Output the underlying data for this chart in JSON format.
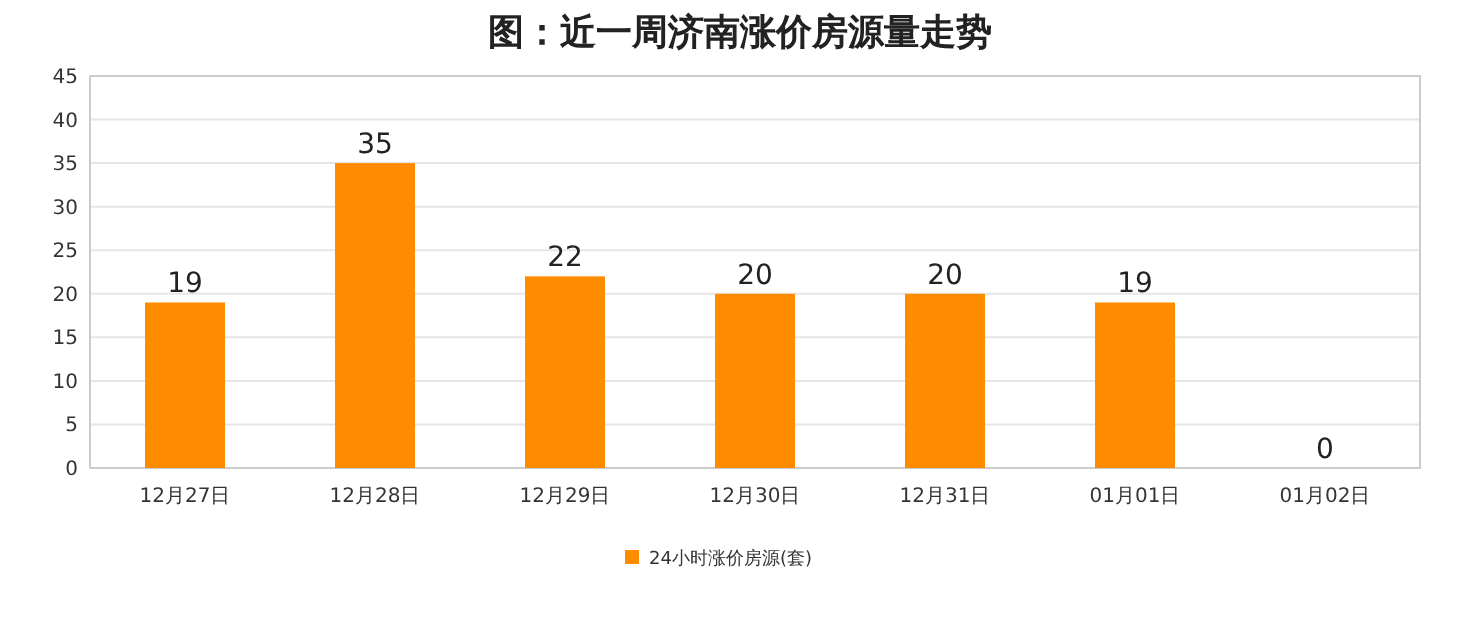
{
  "chart_data": {
    "type": "bar",
    "title": "图：近一周济南涨价房源量走势",
    "categories": [
      "12月27日",
      "12月28日",
      "12月29日",
      "12月30日",
      "12月31日",
      "01月01日",
      "01月02日"
    ],
    "series": [
      {
        "name": "24小时涨价房源(套)",
        "color": "#ff8c00",
        "values": [
          19,
          35,
          22,
          20,
          20,
          19,
          0
        ]
      }
    ],
    "ylim": [
      0,
      45
    ],
    "yticks": [
      0,
      5,
      10,
      15,
      20,
      25,
      30,
      35,
      40,
      45
    ],
    "grid": "y",
    "legend": "bottom",
    "data_labels": true
  }
}
